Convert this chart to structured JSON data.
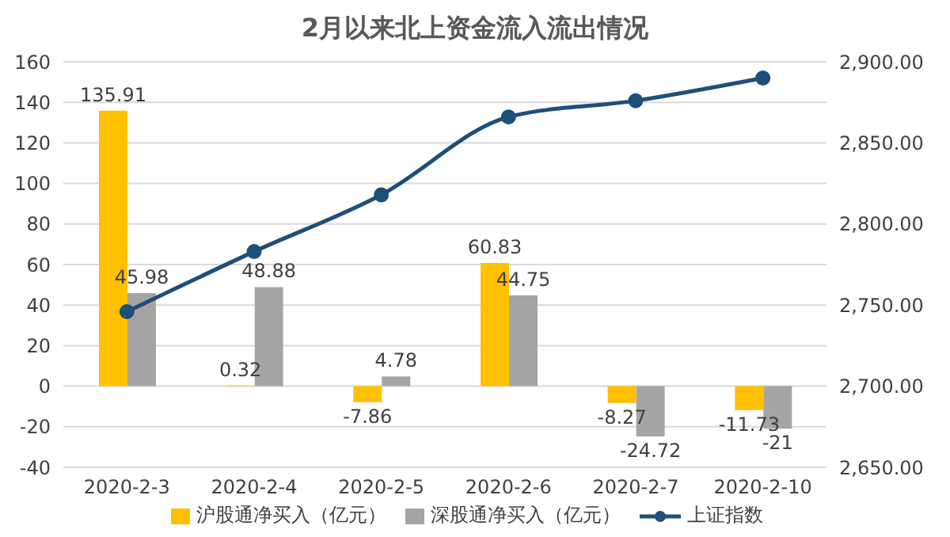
{
  "chart_data": {
    "type": "bar",
    "title": "2月以来北上资金流入流出情况",
    "categories": [
      "2020-2-3",
      "2020-2-4",
      "2020-2-5",
      "2020-2-6",
      "2020-2-7",
      "2020-2-10"
    ],
    "series": [
      {
        "name": "沪股通净买入（亿元）",
        "color": "#ffc000",
        "values": [
          135.91,
          0.32,
          -7.86,
          60.83,
          -8.27,
          -11.73
        ],
        "value_labels": [
          "135.91",
          "0.32",
          "-7.86",
          "60.83",
          "-8.27",
          "-11.73"
        ]
      },
      {
        "name": "深股通净买入（亿元）",
        "color": "#a5a5a5",
        "values": [
          45.98,
          48.88,
          4.78,
          44.75,
          -24.72,
          -21
        ],
        "value_labels": [
          "45.98",
          "48.88",
          "4.78",
          "44.75",
          "-24.72",
          "-21"
        ]
      },
      {
        "name": "上证指数",
        "type": "line",
        "axis": "y2",
        "color": "#1f4e79",
        "marker": "circle",
        "values": [
          2746,
          2783,
          2818,
          2866,
          2876,
          2890
        ]
      }
    ],
    "ylim": [
      -40,
      160
    ],
    "yticks": [
      -40,
      -20,
      0,
      20,
      40,
      60,
      80,
      100,
      120,
      140,
      160
    ],
    "y2lim": [
      2650,
      2900
    ],
    "y2ticks": [
      {
        "value": 2650,
        "label": "2,650.00"
      },
      {
        "value": 2700,
        "label": "2,700.00"
      },
      {
        "value": 2750,
        "label": "2,750.00"
      },
      {
        "value": 2800,
        "label": "2,800.00"
      },
      {
        "value": 2850,
        "label": "2,850.00"
      },
      {
        "value": 2900,
        "label": "2,900.00"
      }
    ],
    "grid": "y",
    "legend": "bottom"
  }
}
